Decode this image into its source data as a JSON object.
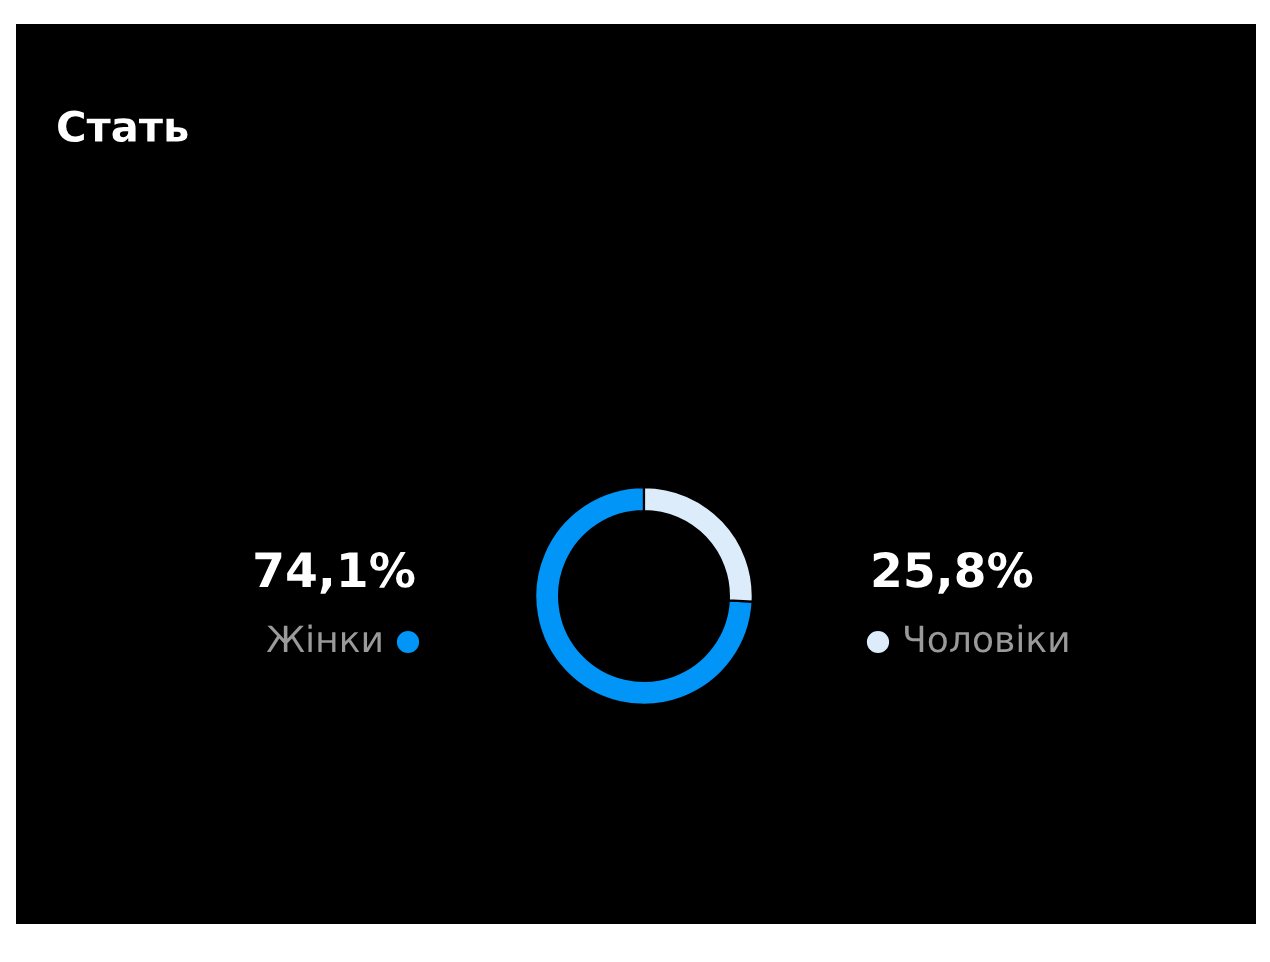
{
  "chart_data": {
    "type": "donut",
    "title": "Стать",
    "categories": [
      "Жінки",
      "Чоловіки"
    ],
    "values": [
      74.1,
      25.8
    ],
    "colors": [
      "#0095f6",
      "#dcecfb"
    ],
    "value_labels": [
      "74,1%",
      "25,8%"
    ]
  }
}
